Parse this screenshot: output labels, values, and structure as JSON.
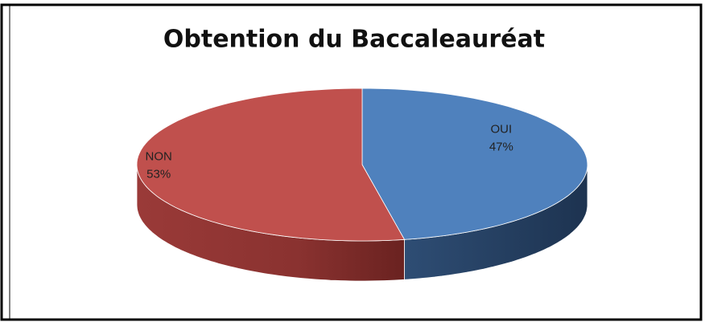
{
  "chart_data": {
    "type": "pie",
    "title": "Obtention du Baccaleauréat",
    "categories": [
      "OUI",
      "NON"
    ],
    "values": [
      47,
      53
    ],
    "value_labels": [
      "47%",
      "53%"
    ],
    "colors": [
      "#4f81bd",
      "#c0504d"
    ]
  }
}
